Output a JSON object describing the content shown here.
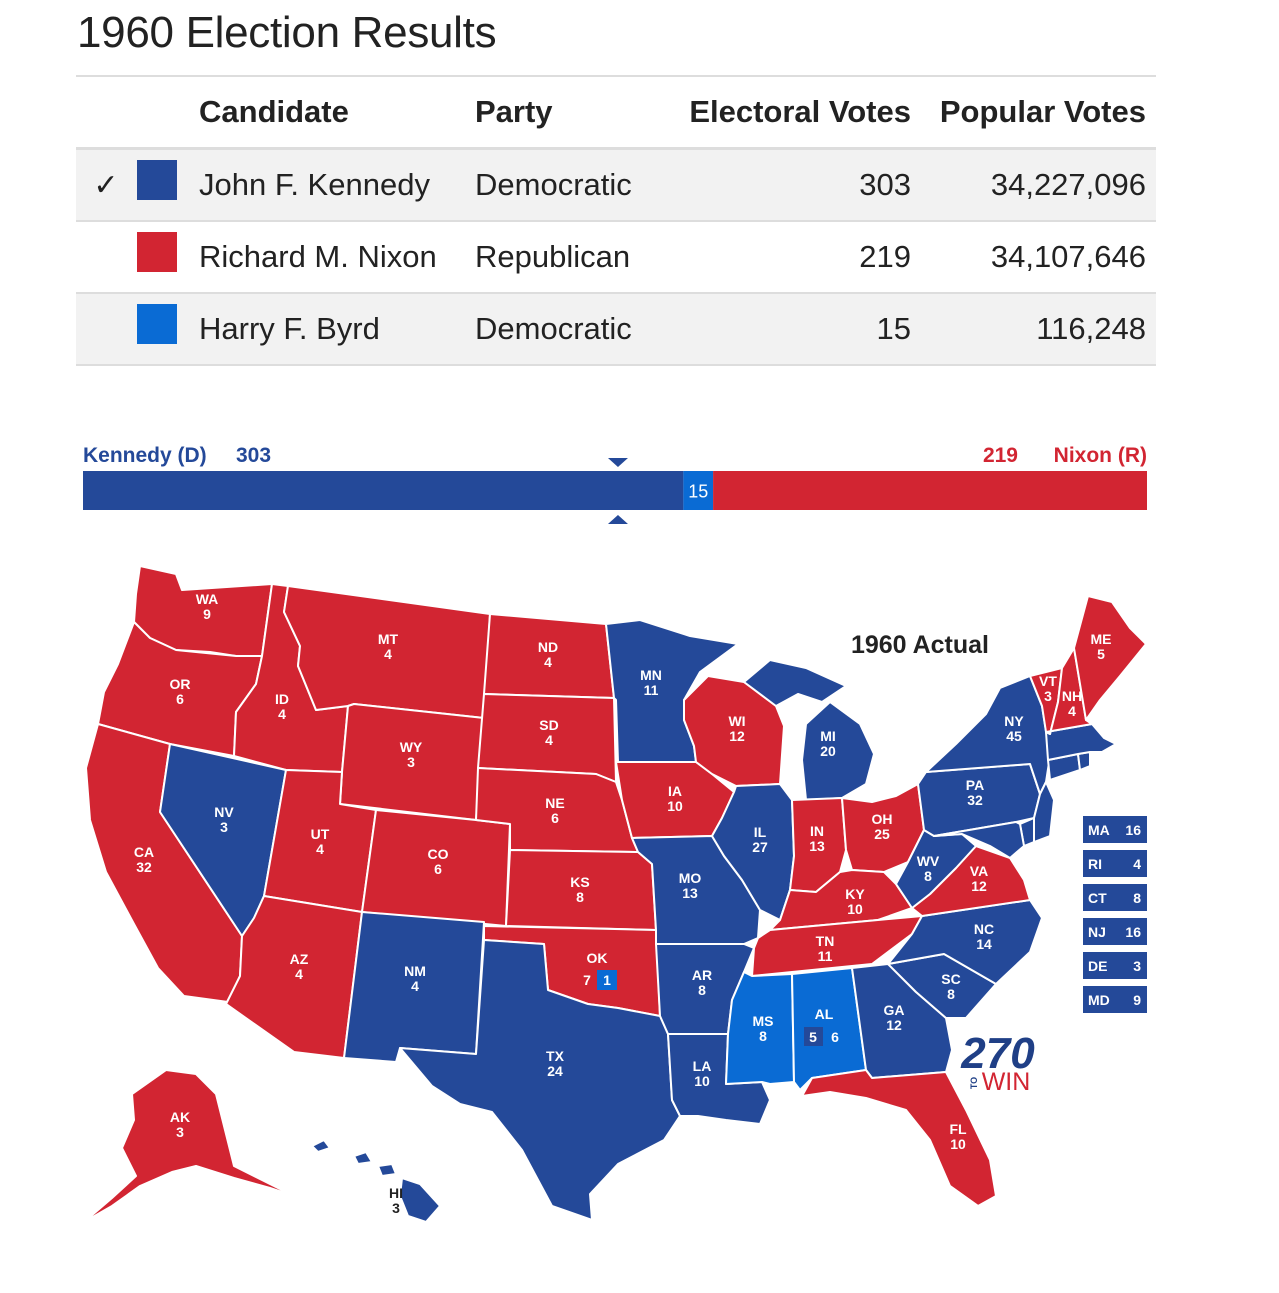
{
  "title": "1960 Election Results",
  "colors": {
    "dem": "#244999",
    "rep": "#d22532",
    "byrd": "#0a6bd4",
    "border": "#ffffff"
  },
  "table": {
    "headers": {
      "candidate": "Candidate",
      "party": "Party",
      "electoral": "Electoral Votes",
      "popular": "Popular Votes"
    },
    "rows": [
      {
        "winner": true,
        "check": "✓",
        "color": "#244999",
        "candidate": "John F. Kennedy",
        "party": "Democratic",
        "electoral": "303",
        "popular": "34,227,096"
      },
      {
        "winner": false,
        "check": "",
        "color": "#d22532",
        "candidate": "Richard M. Nixon",
        "party": "Republican",
        "electoral": "219",
        "popular": "34,107,646"
      },
      {
        "winner": false,
        "check": "",
        "color": "#0a6bd4",
        "candidate": "Harry F. Byrd",
        "party": "Democratic",
        "electoral": "15",
        "popular": "116,248"
      }
    ]
  },
  "bar": {
    "left_name": "Kennedy (D)",
    "left_votes": "303",
    "right_name": "Nixon (R)",
    "right_votes": "219",
    "middle_votes": "15",
    "dem": 303,
    "byrd": 15,
    "rep": 219,
    "threshold": 270
  },
  "map": {
    "title": "1960 Actual",
    "logo_number": "270",
    "logo_to": "TO",
    "logo_win": "WIN",
    "states": [
      {
        "abbr": "WA",
        "ev": "9",
        "party": "rep"
      },
      {
        "abbr": "OR",
        "ev": "6",
        "party": "rep"
      },
      {
        "abbr": "CA",
        "ev": "32",
        "party": "rep"
      },
      {
        "abbr": "ID",
        "ev": "4",
        "party": "rep"
      },
      {
        "abbr": "NV",
        "ev": "3",
        "party": "dem"
      },
      {
        "abbr": "MT",
        "ev": "4",
        "party": "rep"
      },
      {
        "abbr": "WY",
        "ev": "3",
        "party": "rep"
      },
      {
        "abbr": "UT",
        "ev": "4",
        "party": "rep"
      },
      {
        "abbr": "AZ",
        "ev": "4",
        "party": "rep"
      },
      {
        "abbr": "CO",
        "ev": "6",
        "party": "rep"
      },
      {
        "abbr": "NM",
        "ev": "4",
        "party": "dem"
      },
      {
        "abbr": "ND",
        "ev": "4",
        "party": "rep"
      },
      {
        "abbr": "SD",
        "ev": "4",
        "party": "rep"
      },
      {
        "abbr": "NE",
        "ev": "6",
        "party": "rep"
      },
      {
        "abbr": "KS",
        "ev": "8",
        "party": "rep"
      },
      {
        "abbr": "OK",
        "ev": "7",
        "party": "rep"
      },
      {
        "abbr": "TX",
        "ev": "24",
        "party": "dem"
      },
      {
        "abbr": "MN",
        "ev": "11",
        "party": "dem"
      },
      {
        "abbr": "IA",
        "ev": "10",
        "party": "rep"
      },
      {
        "abbr": "MO",
        "ev": "13",
        "party": "dem"
      },
      {
        "abbr": "AR",
        "ev": "8",
        "party": "dem"
      },
      {
        "abbr": "LA",
        "ev": "10",
        "party": "dem"
      },
      {
        "abbr": "WI",
        "ev": "12",
        "party": "rep"
      },
      {
        "abbr": "IL",
        "ev": "27",
        "party": "dem"
      },
      {
        "abbr": "MI",
        "ev": "20",
        "party": "dem"
      },
      {
        "abbr": "IN",
        "ev": "13",
        "party": "rep"
      },
      {
        "abbr": "OH",
        "ev": "25",
        "party": "rep"
      },
      {
        "abbr": "KY",
        "ev": "10",
        "party": "rep"
      },
      {
        "abbr": "TN",
        "ev": "11",
        "party": "rep"
      },
      {
        "abbr": "MS",
        "ev": "8",
        "party": "byrd"
      },
      {
        "abbr": "AL",
        "ev": "6",
        "party": "byrd"
      },
      {
        "abbr": "GA",
        "ev": "12",
        "party": "dem"
      },
      {
        "abbr": "FL",
        "ev": "10",
        "party": "rep"
      },
      {
        "abbr": "SC",
        "ev": "8",
        "party": "dem"
      },
      {
        "abbr": "NC",
        "ev": "14",
        "party": "dem"
      },
      {
        "abbr": "VA",
        "ev": "12",
        "party": "rep"
      },
      {
        "abbr": "WV",
        "ev": "8",
        "party": "dem"
      },
      {
        "abbr": "PA",
        "ev": "32",
        "party": "dem"
      },
      {
        "abbr": "NY",
        "ev": "45",
        "party": "dem"
      },
      {
        "abbr": "VT",
        "ev": "3",
        "party": "rep"
      },
      {
        "abbr": "NH",
        "ev": "4",
        "party": "rep"
      },
      {
        "abbr": "ME",
        "ev": "5",
        "party": "rep"
      },
      {
        "abbr": "AK",
        "ev": "3",
        "party": "rep"
      },
      {
        "abbr": "HI",
        "ev": "3",
        "party": "dem"
      }
    ],
    "ok_split": {
      "ev": "1",
      "party": "byrd"
    },
    "al_split": {
      "ev": "5",
      "party": "dem"
    },
    "small_states": [
      {
        "abbr": "MA",
        "ev": "16",
        "party": "dem"
      },
      {
        "abbr": "RI",
        "ev": "4",
        "party": "dem"
      },
      {
        "abbr": "CT",
        "ev": "8",
        "party": "dem"
      },
      {
        "abbr": "NJ",
        "ev": "16",
        "party": "dem"
      },
      {
        "abbr": "DE",
        "ev": "3",
        "party": "dem"
      },
      {
        "abbr": "MD",
        "ev": "9",
        "party": "dem"
      }
    ]
  }
}
